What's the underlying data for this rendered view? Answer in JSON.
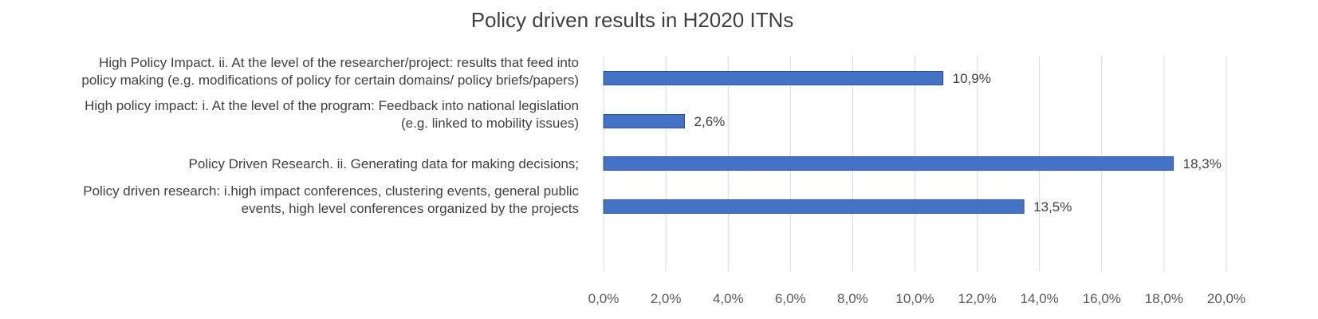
{
  "chart_data": {
    "type": "bar",
    "orientation": "horizontal",
    "title": "Policy driven results in H2020 ITNs",
    "categories": [
      [
        "High Policy Impact. ii. At the level of the researcher/project: results that feed into",
        "policy making (e.g. modifications of policy for certain domains/ policy briefs/papers)"
      ],
      [
        "High policy impact: i. At the level of the program: Feedback into national legislation",
        "(e.g. linked to mobility issues)"
      ],
      [
        "Policy Driven Research. ii. Generating data for making decisions;"
      ],
      [
        "Policy driven research: i.high impact conferences, clustering events, general public",
        "events, high level conferences organized by the projects"
      ]
    ],
    "values": [
      10.9,
      2.6,
      18.3,
      13.5
    ],
    "data_labels": [
      "10,9%",
      "2,6%",
      "18,3%",
      "13,5%"
    ],
    "xlim": [
      0,
      20
    ],
    "x_ticks": [
      0,
      2,
      4,
      6,
      8,
      10,
      12,
      14,
      16,
      18,
      20
    ],
    "x_tick_labels": [
      "0,0%",
      "2,0%",
      "4,0%",
      "6,0%",
      "8,0%",
      "10,0%",
      "12,0%",
      "14,0%",
      "16,0%",
      "18,0%",
      "20,0%"
    ],
    "xlabel": "",
    "ylabel": "",
    "grid": "vertical",
    "legend": "none",
    "bar_color": "#4472c4"
  }
}
